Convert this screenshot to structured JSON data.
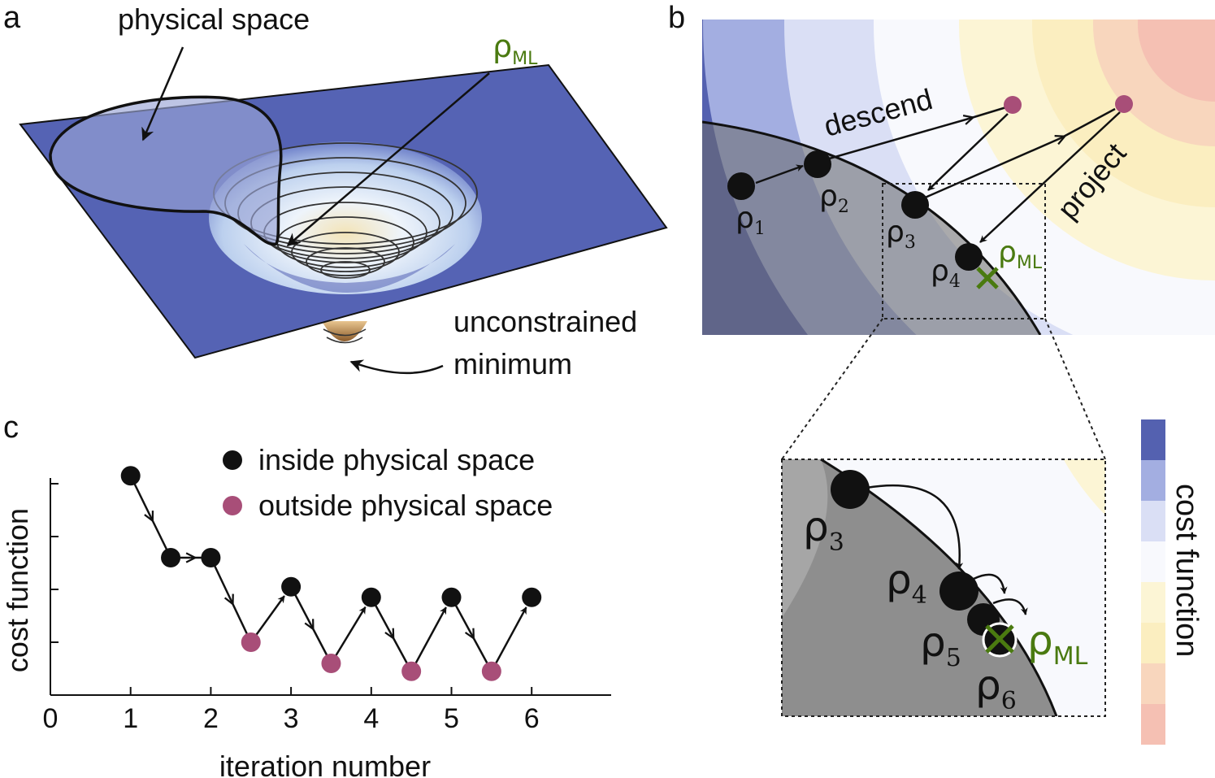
{
  "panel_a": {
    "label": "a",
    "physical_space_label": "physical space",
    "rho": "ρ",
    "rho_ml_sub": "ML",
    "unconstrained_line1": "unconstrained",
    "unconstrained_line2": "minimum"
  },
  "panel_b": {
    "label": "b",
    "descend_label": "descend",
    "project_label": "project",
    "rho": "ρ",
    "rho_ml_sub": "ML",
    "points": [
      {
        "name": "rho-1",
        "sub": "1"
      },
      {
        "name": "rho-2",
        "sub": "2"
      },
      {
        "name": "rho-3",
        "sub": "3"
      },
      {
        "name": "rho-4",
        "sub": "4"
      }
    ],
    "zoom_points": [
      {
        "name": "rho-3",
        "sub": "3"
      },
      {
        "name": "rho-4",
        "sub": "4"
      },
      {
        "name": "rho-5",
        "sub": "5"
      },
      {
        "name": "rho-6",
        "sub": "6"
      }
    ],
    "colorbar_label": "cost function",
    "colorbar_colors": [
      "#5461b0",
      "#a3aee1",
      "#dadff5",
      "#f8f9fd",
      "#fcf5d5",
      "#fbeec0",
      "#f8d6bd",
      "#f5c0b3"
    ],
    "inside_color": "#111111",
    "outside_color": "#a84e78",
    "ml_color": "#4a7a10"
  },
  "panel_c": {
    "label": "c",
    "legend_inside": "inside physical space",
    "legend_outside": "outside physical space",
    "xlabel": "iteration number",
    "ylabel": "cost function",
    "x_ticks": [
      "0",
      "1",
      "2",
      "3",
      "4",
      "5",
      "6"
    ]
  },
  "chart_data": {
    "type": "line",
    "xlabel": "iteration number",
    "ylabel": "cost function",
    "xlim": [
      0,
      7
    ],
    "ylim": [
      0,
      5
    ],
    "x_ticks": [
      0,
      1,
      2,
      3,
      4,
      5,
      6
    ],
    "y_ticks": [
      1,
      2,
      3,
      4
    ],
    "grid": false,
    "legend_position": "top-right",
    "series": [
      {
        "name": "inside physical space",
        "color": "#111111",
        "x": [
          1,
          1.5,
          2,
          3,
          4,
          5,
          6
        ],
        "y": [
          4.15,
          2.6,
          2.6,
          2.05,
          1.85,
          1.85,
          1.85
        ]
      },
      {
        "name": "outside physical space",
        "color": "#a84e78",
        "x": [
          2.5,
          3.5,
          4.5,
          5.5
        ],
        "y": [
          1.0,
          0.6,
          0.45,
          0.45
        ]
      }
    ],
    "path_order": [
      [
        1,
        4.15
      ],
      [
        1.5,
        2.6
      ],
      [
        2,
        2.6
      ],
      [
        2.5,
        1.0
      ],
      [
        3,
        2.05
      ],
      [
        3.5,
        0.6
      ],
      [
        4,
        1.85
      ],
      [
        4.5,
        0.45
      ],
      [
        5,
        1.85
      ],
      [
        5.5,
        0.45
      ],
      [
        6,
        1.85
      ]
    ]
  }
}
